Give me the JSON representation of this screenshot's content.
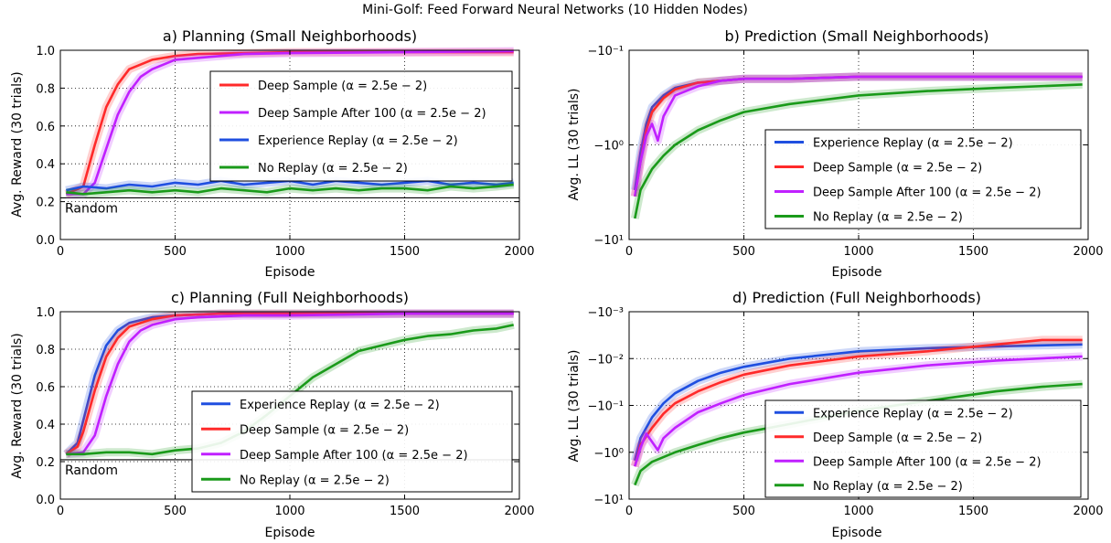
{
  "figure": {
    "suptitle": "Mini-Golf: Feed Forward Neural Networks (10 Hidden Nodes)"
  },
  "chart_data": [
    {
      "id": "a",
      "type": "line",
      "title": "a) Planning (Small Neighborhoods)",
      "xlabel": "Episode",
      "ylabel": "Avg. Reward (30 trials)",
      "yscale": "linear",
      "xlim": [
        0,
        2000
      ],
      "ylim": [
        0.0,
        1.0
      ],
      "xticks": [
        0,
        500,
        1000,
        1500,
        2000
      ],
      "yticks": [
        0.0,
        0.2,
        0.4,
        0.6,
        0.8,
        1.0
      ],
      "ytick_labels": [
        "0.0",
        "0.2",
        "0.4",
        "0.6",
        "0.8",
        "1.0"
      ],
      "grid": true,
      "legend_position": "center-right",
      "reference_line": {
        "y": 0.22,
        "label": "Random"
      },
      "series": [
        {
          "name": "Deep Sample",
          "alpha": "(α = 2.5e − 2)",
          "color": "#ff2a2a",
          "x": [
            25,
            100,
            150,
            200,
            250,
            300,
            400,
            500,
            600,
            800,
            1000,
            1500,
            1975
          ],
          "y": [
            0.24,
            0.28,
            0.5,
            0.7,
            0.82,
            0.9,
            0.95,
            0.97,
            0.98,
            0.985,
            0.99,
            0.99,
            0.99
          ]
        },
        {
          "name": "Deep Sample After 100",
          "alpha": "(α = 2.5e − 2)",
          "color": "#c020ff",
          "x": [
            25,
            100,
            150,
            200,
            250,
            300,
            350,
            400,
            500,
            600,
            700,
            800,
            1000,
            1500,
            1975
          ],
          "y": [
            0.24,
            0.24,
            0.3,
            0.48,
            0.66,
            0.78,
            0.86,
            0.9,
            0.95,
            0.96,
            0.97,
            0.98,
            0.985,
            0.99,
            0.995
          ]
        },
        {
          "name": "Experience Replay",
          "alpha": "(α = 2.5e − 2)",
          "color": "#1f4fe0",
          "x": [
            25,
            100,
            200,
            300,
            400,
            500,
            600,
            700,
            800,
            900,
            1000,
            1100,
            1200,
            1300,
            1400,
            1500,
            1600,
            1700,
            1800,
            1900,
            1975
          ],
          "y": [
            0.26,
            0.28,
            0.27,
            0.29,
            0.28,
            0.3,
            0.29,
            0.31,
            0.29,
            0.3,
            0.31,
            0.29,
            0.31,
            0.3,
            0.29,
            0.3,
            0.31,
            0.29,
            0.3,
            0.29,
            0.3
          ]
        },
        {
          "name": "No Replay",
          "alpha": "(α = 2.5e − 2)",
          "color": "#1a9a1a",
          "x": [
            25,
            100,
            200,
            300,
            400,
            500,
            600,
            700,
            800,
            900,
            1000,
            1100,
            1200,
            1300,
            1400,
            1500,
            1600,
            1700,
            1800,
            1900,
            1975
          ],
          "y": [
            0.25,
            0.24,
            0.25,
            0.26,
            0.25,
            0.26,
            0.25,
            0.27,
            0.26,
            0.25,
            0.27,
            0.26,
            0.27,
            0.26,
            0.27,
            0.27,
            0.26,
            0.28,
            0.27,
            0.28,
            0.29
          ]
        }
      ]
    },
    {
      "id": "b",
      "type": "line",
      "title": "b) Prediction (Small Neighborhoods)",
      "xlabel": "Episode",
      "ylabel": "Avg. LL (30 trials)",
      "yscale": "symlog",
      "xlim": [
        0,
        2000
      ],
      "ylim": [
        -10,
        -0.1
      ],
      "xticks": [
        0,
        500,
        1000,
        1500,
        2000
      ],
      "yticks": [
        -10,
        -1,
        -0.1
      ],
      "ytick_labels": [
        "−10¹",
        "−10⁰",
        "−10⁻¹"
      ],
      "grid": true,
      "legend_position": "lower-right",
      "series": [
        {
          "name": "Experience Replay",
          "alpha": "(α = 2.5e − 2)",
          "color": "#1f4fe0",
          "x": [
            25,
            50,
            75,
            100,
            150,
            200,
            300,
            400,
            500,
            700,
            1000,
            1500,
            1975
          ],
          "y": [
            -3.0,
            -1.2,
            -0.6,
            -0.4,
            -0.3,
            -0.25,
            -0.22,
            -0.21,
            -0.2,
            -0.2,
            -0.19,
            -0.19,
            -0.19
          ]
        },
        {
          "name": "Deep Sample",
          "alpha": "(α = 2.5e − 2)",
          "color": "#ff2a2a",
          "x": [
            25,
            50,
            75,
            100,
            150,
            200,
            300,
            400,
            500,
            700,
            1000,
            1500,
            1975
          ],
          "y": [
            -3.5,
            -1.5,
            -0.7,
            -0.45,
            -0.32,
            -0.26,
            -0.22,
            -0.21,
            -0.2,
            -0.2,
            -0.19,
            -0.19,
            -0.19
          ]
        },
        {
          "name": "Deep Sample After 100",
          "alpha": "(α = 2.5e − 2)",
          "color": "#c020ff",
          "x": [
            25,
            50,
            75,
            100,
            125,
            150,
            200,
            300,
            400,
            500,
            700,
            1000,
            1500,
            1975
          ],
          "y": [
            -3.5,
            -1.5,
            -0.8,
            -0.6,
            -0.9,
            -0.5,
            -0.3,
            -0.24,
            -0.21,
            -0.2,
            -0.2,
            -0.19,
            -0.19,
            -0.19
          ]
        },
        {
          "name": "No Replay",
          "alpha": "(α = 2.5e − 2)",
          "color": "#1a9a1a",
          "x": [
            25,
            50,
            100,
            150,
            200,
            300,
            400,
            500,
            700,
            1000,
            1300,
            1600,
            1975
          ],
          "y": [
            -6.0,
            -3.0,
            -1.8,
            -1.3,
            -1.0,
            -0.7,
            -0.55,
            -0.45,
            -0.37,
            -0.3,
            -0.27,
            -0.25,
            -0.23
          ]
        }
      ]
    },
    {
      "id": "c",
      "type": "line",
      "title": "c) Planning (Full Neighborhoods)",
      "xlabel": "Episode",
      "ylabel": "Avg. Reward (30 trials)",
      "yscale": "linear",
      "xlim": [
        0,
        2000
      ],
      "ylim": [
        0.0,
        1.0
      ],
      "xticks": [
        0,
        500,
        1000,
        1500,
        2000
      ],
      "yticks": [
        0.0,
        0.2,
        0.4,
        0.6,
        0.8,
        1.0
      ],
      "ytick_labels": [
        "0.0",
        "0.2",
        "0.4",
        "0.6",
        "0.8",
        "1.0"
      ],
      "grid": true,
      "legend_position": "lower-right",
      "reference_line": {
        "y": 0.21,
        "label": "Random"
      },
      "series": [
        {
          "name": "Experience Replay",
          "alpha": "(α = 2.5e − 2)",
          "color": "#1f4fe0",
          "x": [
            25,
            75,
            100,
            150,
            200,
            250,
            300,
            400,
            500,
            700,
            1000,
            1500,
            1975
          ],
          "y": [
            0.24,
            0.3,
            0.42,
            0.66,
            0.82,
            0.9,
            0.94,
            0.97,
            0.98,
            0.99,
            0.99,
            0.99,
            0.99
          ]
        },
        {
          "name": "Deep Sample",
          "alpha": "(α = 2.5e − 2)",
          "color": "#ff2a2a",
          "x": [
            25,
            75,
            100,
            150,
            200,
            250,
            300,
            400,
            500,
            700,
            1000,
            1500,
            1975
          ],
          "y": [
            0.24,
            0.28,
            0.36,
            0.58,
            0.76,
            0.86,
            0.92,
            0.96,
            0.98,
            0.99,
            0.99,
            0.99,
            0.99
          ]
        },
        {
          "name": "Deep Sample After 100",
          "alpha": "(α = 2.5e − 2)",
          "color": "#c020ff",
          "x": [
            25,
            100,
            150,
            200,
            250,
            300,
            350,
            400,
            500,
            600,
            800,
            1000,
            1500,
            1975
          ],
          "y": [
            0.24,
            0.25,
            0.34,
            0.55,
            0.72,
            0.84,
            0.9,
            0.93,
            0.96,
            0.97,
            0.98,
            0.98,
            0.99,
            0.99
          ]
        },
        {
          "name": "No Replay",
          "alpha": "(α = 2.5e − 2)",
          "color": "#1a9a1a",
          "x": [
            25,
            100,
            200,
            300,
            400,
            500,
            600,
            700,
            800,
            900,
            1000,
            1100,
            1200,
            1300,
            1400,
            1500,
            1600,
            1700,
            1800,
            1900,
            1975
          ],
          "y": [
            0.24,
            0.24,
            0.25,
            0.25,
            0.24,
            0.26,
            0.27,
            0.3,
            0.36,
            0.45,
            0.55,
            0.65,
            0.72,
            0.79,
            0.82,
            0.85,
            0.87,
            0.88,
            0.9,
            0.91,
            0.93
          ]
        }
      ]
    },
    {
      "id": "d",
      "type": "line",
      "title": "d) Prediction (Full Neighborhoods)",
      "xlabel": "Episode",
      "ylabel": "Avg. LL (30 trials)",
      "yscale": "symlog",
      "xlim": [
        0,
        2000
      ],
      "ylim": [
        -10,
        -0.001
      ],
      "xticks": [
        0,
        500,
        1000,
        1500,
        2000
      ],
      "yticks": [
        -10,
        -1,
        -0.1,
        -0.01,
        -0.001
      ],
      "ytick_labels": [
        "−10¹",
        "−10⁰",
        "−10⁻¹",
        "−10⁻²",
        "−10⁻³"
      ],
      "grid": true,
      "legend_position": "lower-right",
      "series": [
        {
          "name": "Experience Replay",
          "alpha": "(α = 2.5e − 2)",
          "color": "#1f4fe0",
          "x": [
            25,
            50,
            100,
            150,
            200,
            300,
            400,
            500,
            700,
            1000,
            1300,
            1600,
            1975
          ],
          "y": [
            -1.5,
            -0.5,
            -0.18,
            -0.09,
            -0.055,
            -0.03,
            -0.02,
            -0.015,
            -0.01,
            -0.007,
            -0.006,
            -0.0055,
            -0.005
          ]
        },
        {
          "name": "Deep Sample",
          "alpha": "(α = 2.5e − 2)",
          "color": "#ff2a2a",
          "x": [
            25,
            50,
            100,
            150,
            200,
            300,
            400,
            500,
            700,
            1000,
            1300,
            1600,
            1800,
            1975
          ],
          "y": [
            -2.0,
            -0.7,
            -0.3,
            -0.15,
            -0.09,
            -0.05,
            -0.032,
            -0.022,
            -0.014,
            -0.009,
            -0.007,
            -0.005,
            -0.004,
            -0.004
          ]
        },
        {
          "name": "Deep Sample After 100",
          "alpha": "(α = 2.5e − 2)",
          "color": "#c020ff",
          "x": [
            25,
            50,
            75,
            100,
            125,
            150,
            200,
            300,
            400,
            500,
            700,
            1000,
            1300,
            1600,
            1975
          ],
          "y": [
            -2.0,
            -0.8,
            -0.4,
            -0.6,
            -0.9,
            -0.5,
            -0.3,
            -0.14,
            -0.09,
            -0.06,
            -0.035,
            -0.02,
            -0.014,
            -0.011,
            -0.009
          ]
        },
        {
          "name": "No Replay",
          "alpha": "(α = 2.5e − 2)",
          "color": "#1a9a1a",
          "x": [
            25,
            50,
            100,
            200,
            300,
            400,
            500,
            700,
            1000,
            1300,
            1600,
            1800,
            1975
          ],
          "y": [
            -5.0,
            -2.5,
            -1.6,
            -1.0,
            -0.7,
            -0.5,
            -0.38,
            -0.25,
            -0.13,
            -0.08,
            -0.05,
            -0.04,
            -0.035
          ]
        }
      ]
    }
  ]
}
